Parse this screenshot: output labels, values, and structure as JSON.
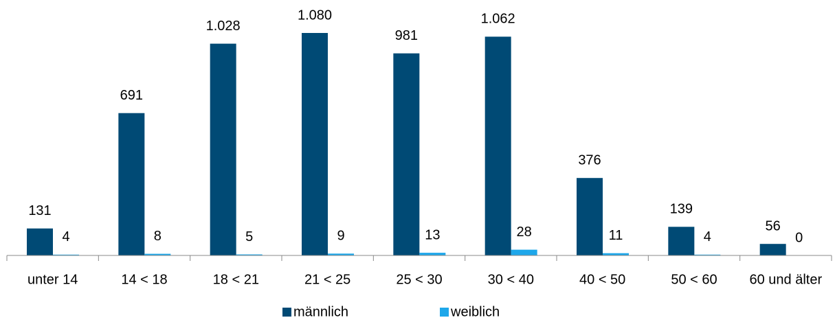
{
  "chart_data": {
    "type": "bar",
    "categories": [
      "unter 14",
      "14 < 18",
      "18 < 21",
      "21 < 25",
      "25 < 30",
      "30 < 40",
      "40 < 50",
      "50 < 60",
      "60 und älter"
    ],
    "series": [
      {
        "name": "männlich",
        "color": "#004a75",
        "values": [
          131,
          691,
          1028,
          1080,
          981,
          1062,
          376,
          139,
          56
        ],
        "value_labels": [
          "131",
          "691",
          "1.028",
          "1.080",
          "981",
          "1.062",
          "376",
          "139",
          "56"
        ]
      },
      {
        "name": "weiblich",
        "color": "#1ea7ea",
        "values": [
          4,
          8,
          5,
          9,
          13,
          28,
          11,
          4,
          0
        ]
      }
    ],
    "legend": "bottom"
  }
}
